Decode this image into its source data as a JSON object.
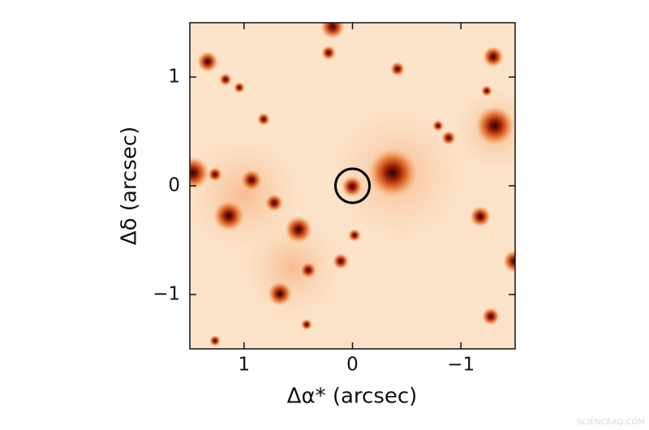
{
  "chart_data": {
    "type": "image",
    "xlabel": "Δα* (arcsec)",
    "ylabel": "Δδ (arcsec)",
    "xlim": [
      1.5,
      -1.5
    ],
    "ylim": [
      -1.5,
      1.5
    ],
    "xticks": [
      1,
      0,
      {
        "value": -1,
        "label": "−1"
      }
    ],
    "yticks": [
      {
        "value": -1,
        "label": "−1"
      },
      0,
      1
    ],
    "watermark": "SCIENCEAQ.COM"
  }
}
